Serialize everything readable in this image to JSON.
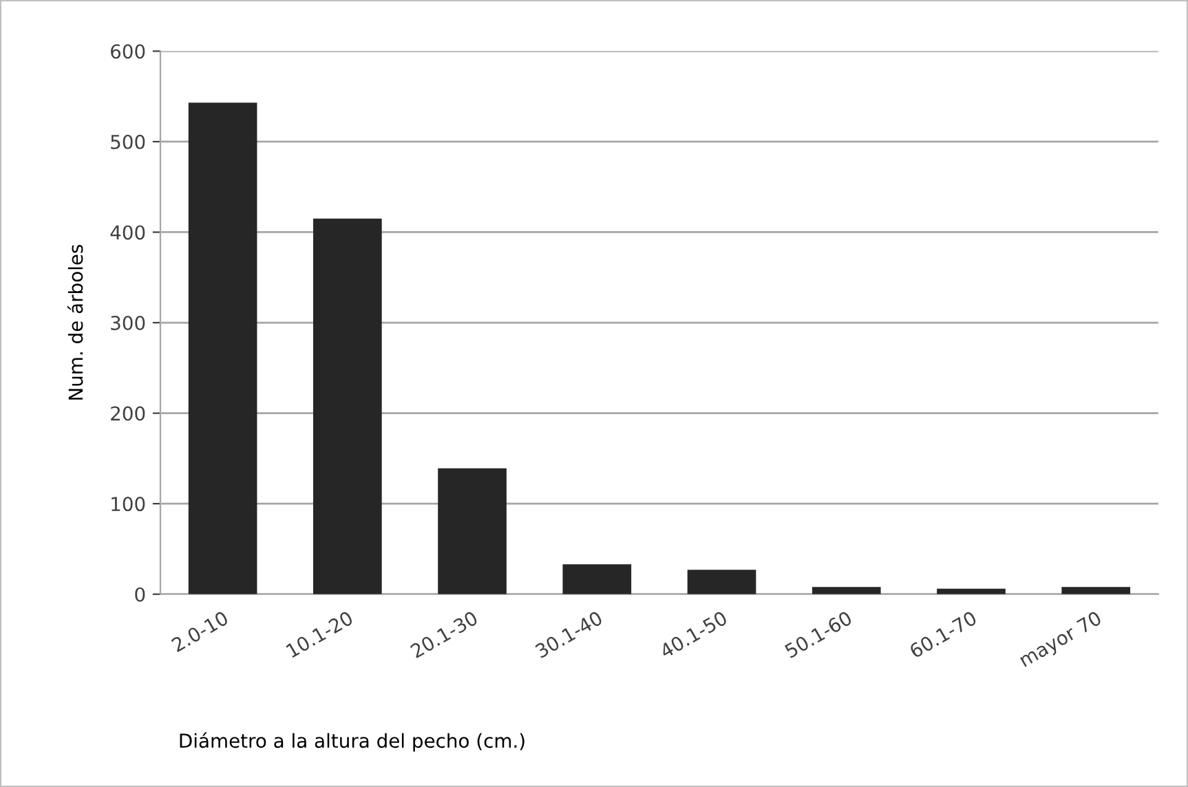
{
  "chart_data": {
    "type": "bar",
    "xlabel": "Diámetro a la altura del pecho (cm.)",
    "ylabel": "Num. de árboles",
    "categories": [
      "2.0-10",
      "10.1-20",
      "20.1-30",
      "30.1-40",
      "40.1-50",
      "50.1-60",
      "60.1-70",
      "mayor 70"
    ],
    "values": [
      543,
      415,
      139,
      33,
      27,
      8,
      6,
      8
    ],
    "color": "#262626",
    "ylim": [
      0,
      600
    ],
    "yticks": [
      0,
      100,
      200,
      300,
      400,
      500,
      600
    ],
    "grid": "y"
  }
}
